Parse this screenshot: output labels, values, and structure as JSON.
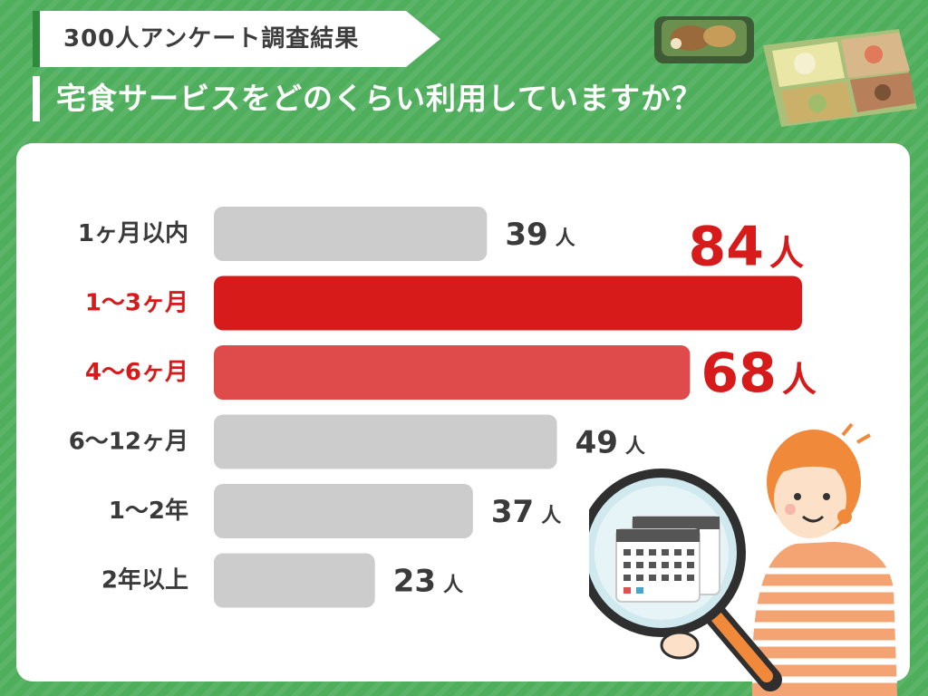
{
  "header": {
    "tag": "300人アンケート調査結果",
    "title": "宅食サービスをどのくらい利用していますか？"
  },
  "colors": {
    "background": "#4fae5c",
    "bar_default": "#cccccc",
    "bar_top": "#d71b1b",
    "bar_second": "#df4a4a",
    "label_default": "#3a3a3a",
    "label_highlight": "#d71b1b"
  },
  "chart_data": {
    "type": "bar",
    "orientation": "horizontal",
    "title": "宅食サービスをどのくらい利用していますか？",
    "categories": [
      "1ヶ月以内",
      "1〜3ヶ月",
      "4〜6ヶ月",
      "6〜12ヶ月",
      "1〜2年",
      "2年以上"
    ],
    "values": [
      39,
      84,
      68,
      49,
      37,
      23
    ],
    "unit": "人",
    "highlight": [
      1,
      2
    ],
    "xlim": [
      0,
      84
    ],
    "grid": false,
    "legend": "none"
  },
  "illustrations": {
    "top_right": "bento-box-food-icon",
    "bottom_right": "woman-with-magnifier-calendar-icon"
  }
}
